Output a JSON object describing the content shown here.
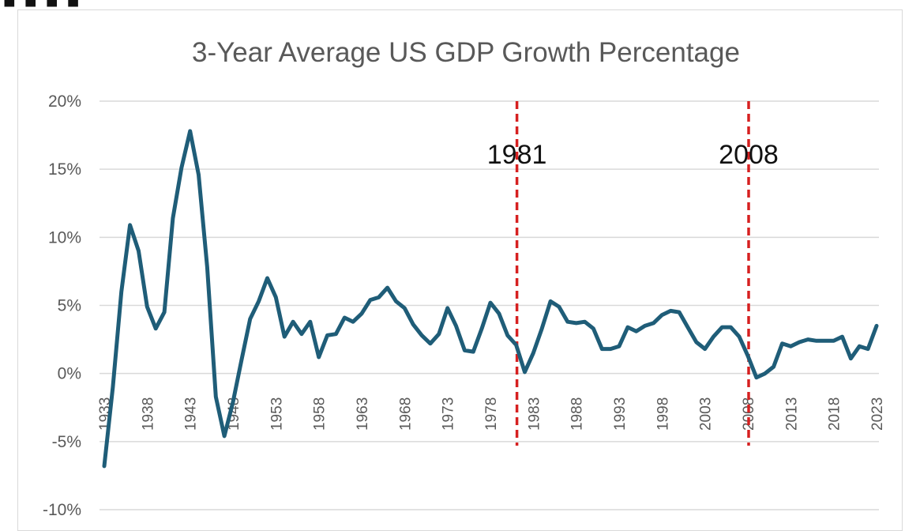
{
  "colors": {
    "line": "#1f5d78",
    "grid": "#d9d9d9",
    "marker": "#d62020",
    "text": "#595959"
  },
  "chart_data": {
    "type": "line",
    "title": "3-Year Average US GDP Growth Percentage",
    "xlabel": "",
    "ylabel": "",
    "ylim": [
      -10,
      20
    ],
    "yticks": [
      "20%",
      "15%",
      "10%",
      "5%",
      "0%",
      "-5%",
      "-10%"
    ],
    "ytick_values": [
      20,
      15,
      10,
      5,
      0,
      -5,
      -10
    ],
    "xticks": [
      "1933",
      "1938",
      "1943",
      "1948",
      "1953",
      "1958",
      "1963",
      "1968",
      "1973",
      "1978",
      "1983",
      "1988",
      "1993",
      "1998",
      "2003",
      "2008",
      "2013",
      "2018",
      "2023"
    ],
    "grid": true,
    "series": [
      {
        "name": "3-Year Average US GDP Growth Percentage",
        "x": [
          1933,
          1934,
          1935,
          1936,
          1937,
          1938,
          1939,
          1940,
          1941,
          1942,
          1943,
          1944,
          1945,
          1946,
          1947,
          1948,
          1949,
          1950,
          1951,
          1952,
          1953,
          1954,
          1955,
          1956,
          1957,
          1958,
          1959,
          1960,
          1961,
          1962,
          1963,
          1964,
          1965,
          1966,
          1967,
          1968,
          1969,
          1970,
          1971,
          1972,
          1973,
          1974,
          1975,
          1976,
          1977,
          1978,
          1979,
          1980,
          1981,
          1982,
          1983,
          1984,
          1985,
          1986,
          1987,
          1988,
          1989,
          1990,
          1991,
          1992,
          1993,
          1994,
          1995,
          1996,
          1997,
          1998,
          1999,
          2000,
          2001,
          2002,
          2003,
          2004,
          2005,
          2006,
          2007,
          2008,
          2009,
          2010,
          2011,
          2012,
          2013,
          2014,
          2015,
          2016,
          2017,
          2018,
          2019,
          2020,
          2021,
          2022,
          2023
        ],
        "values": [
          -6.8,
          -1.0,
          6.0,
          10.9,
          9.0,
          4.9,
          3.3,
          4.5,
          11.4,
          15.1,
          17.8,
          14.6,
          7.8,
          -1.7,
          -4.6,
          -2.1,
          1.0,
          4.0,
          5.3,
          7.0,
          5.6,
          2.7,
          3.8,
          2.9,
          3.8,
          1.2,
          2.8,
          2.9,
          4.1,
          3.8,
          4.4,
          5.4,
          5.6,
          6.3,
          5.3,
          4.8,
          3.6,
          2.8,
          2.2,
          2.9,
          4.8,
          3.5,
          1.7,
          1.6,
          3.3,
          5.2,
          4.4,
          2.8,
          2.1,
          0.1,
          1.5,
          3.3,
          5.3,
          4.9,
          3.8,
          3.7,
          3.8,
          3.3,
          1.8,
          1.8,
          2.0,
          3.4,
          3.1,
          3.5,
          3.7,
          4.3,
          4.6,
          4.5,
          3.4,
          2.3,
          1.8,
          2.7,
          3.4,
          3.4,
          2.7,
          1.3,
          -0.3,
          0.0,
          0.5,
          2.2,
          2.0,
          2.3,
          2.5,
          2.4,
          2.4,
          2.4,
          2.7,
          1.1,
          2.0,
          1.8,
          3.5
        ]
      }
    ],
    "annotations": [
      {
        "label": "1981",
        "x": 1981.0,
        "style": "dashed-vertical"
      },
      {
        "label": "2008",
        "x": 2008.0,
        "style": "dashed-vertical"
      }
    ]
  }
}
